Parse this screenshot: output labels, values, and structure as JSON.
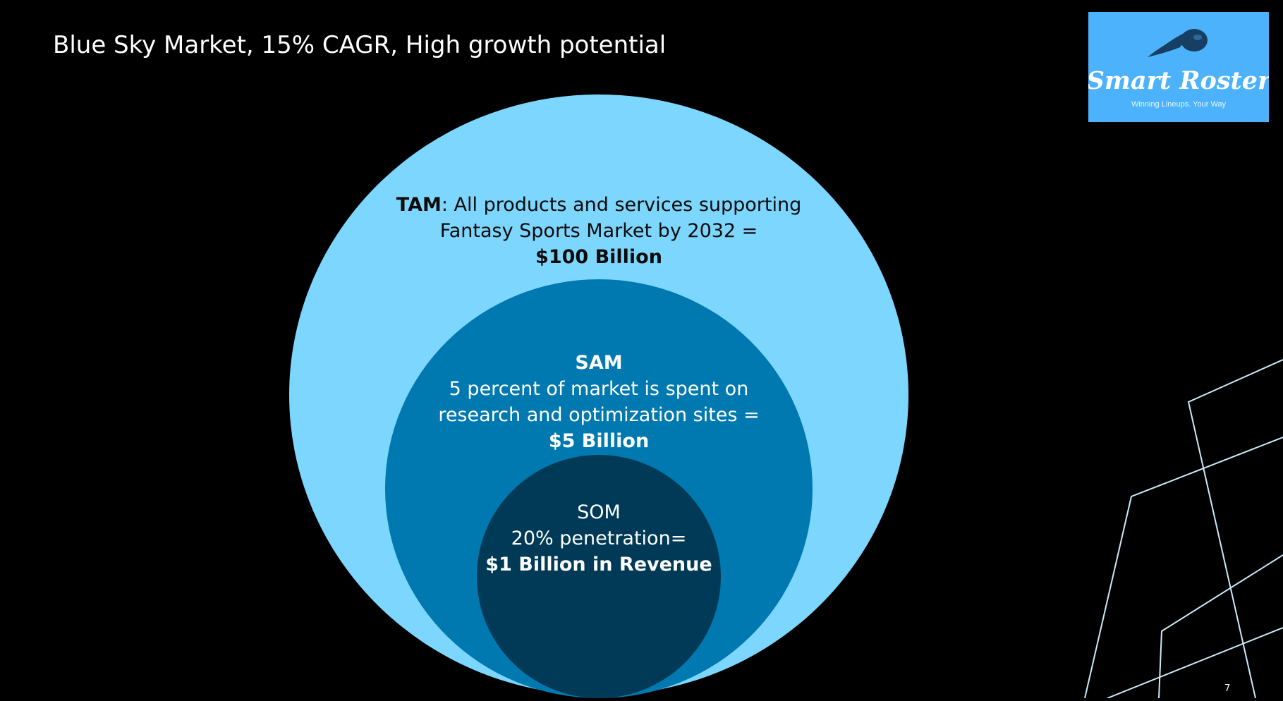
{
  "slide": {
    "title": "Blue Sky Market, 15% CAGR, High growth potential",
    "page_number": "7"
  },
  "logo": {
    "brand_name": "Smart Roster",
    "tagline": "Winning Lineups. Your Way",
    "background_color": "#4cb2fb",
    "icon": "comet-icon"
  },
  "diagram": {
    "tam": {
      "label": "TAM",
      "description_line1": ": All products and services supporting",
      "description_line2": "Fantasy Sports Market by 2032 =",
      "value": "$100 Billion",
      "color": "#7dd6fd"
    },
    "sam": {
      "label": "SAM",
      "description_line1": "5 percent of market is spent on",
      "description_line2": "research and optimization sites =",
      "value": "$5 Billion",
      "color": "#0079b0"
    },
    "som": {
      "label": "SOM",
      "description": "20% penetration=",
      "value": "$1 Billion in Revenue",
      "color": "#003a56"
    }
  },
  "colors": {
    "background": "#000000",
    "decoration_lines": "#c9ecfb"
  }
}
